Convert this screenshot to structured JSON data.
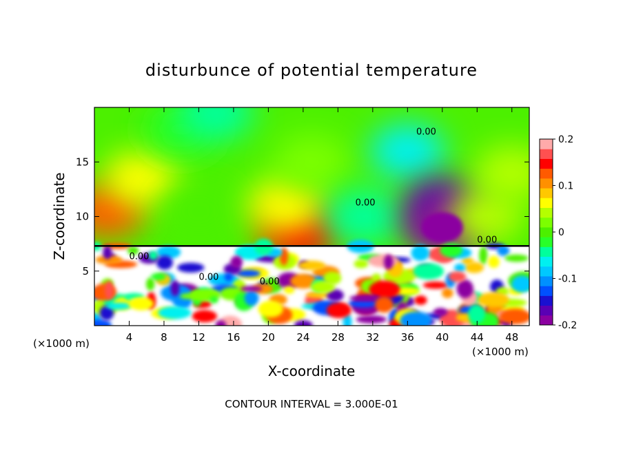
{
  "chart_data": {
    "type": "heatmap",
    "title": "disturbunce of potential temperature",
    "xlabel": "X-coordinate",
    "ylabel": "Z-coordinate",
    "x_unit_label": "(×1000 m)",
    "x_unit_label_right": "(×1000 m)",
    "footnote": "CONTOUR INTERVAL = 3.000E-01",
    "xlim": [
      0,
      50
    ],
    "ylim": [
      0,
      20
    ],
    "x_ticks": [
      4,
      8,
      12,
      16,
      20,
      24,
      28,
      32,
      36,
      40,
      44,
      48
    ],
    "y_ticks": [
      5,
      10,
      15
    ],
    "colorbar": {
      "min": -0.2,
      "max": 0.2,
      "tick_labels": [
        "0.2",
        "0.1",
        "0",
        "-0.1",
        "-0.2"
      ],
      "tick_values": [
        0.2,
        0.1,
        0,
        -0.1,
        -0.2
      ],
      "colors": [
        "#8b00a0",
        "#5a00b4",
        "#1a10d0",
        "#0050ff",
        "#0090ff",
        "#00c8ff",
        "#00f0f0",
        "#00ff9c",
        "#28ff28",
        "#4cf000",
        "#7cff00",
        "#b4ff00",
        "#ffff00",
        "#ffc800",
        "#ff9000",
        "#ff5a00",
        "#ff0000",
        "#ff5050",
        "#ffaaaa"
      ]
    },
    "contour_labels": [
      "0.00",
      "0.00",
      "0.00",
      "0.00",
      "0.00",
      "0.00"
    ],
    "upper_layer": {
      "z_range": [
        7.3,
        20
      ],
      "features": [
        {
          "x": 1.5,
          "z": 10.5,
          "value": 0.12
        },
        {
          "x": 5.5,
          "z": 13.5,
          "value": 0.06
        },
        {
          "x": 12,
          "z": 10.5,
          "value": 0.0
        },
        {
          "x": 10,
          "z": 18,
          "value": -0.02
        },
        {
          "x": 14,
          "z": 19.5,
          "value": -0.05
        },
        {
          "x": 23.5,
          "z": 8.5,
          "value": 0.15
        },
        {
          "x": 22,
          "z": 11,
          "value": 0.07
        },
        {
          "x": 25,
          "z": 15,
          "value": 0.03
        },
        {
          "x": 31,
          "z": 10,
          "value": -0.04
        },
        {
          "x": 36,
          "z": 16,
          "value": -0.06
        },
        {
          "x": 40,
          "z": 11,
          "value": -0.16
        },
        {
          "x": 40,
          "z": 9,
          "value": -0.2
        },
        {
          "x": 45,
          "z": 10,
          "value": 0.04
        },
        {
          "x": 48,
          "z": 14,
          "value": 0.05
        }
      ]
    },
    "lower_layer": {
      "z_range": [
        0,
        7.3
      ],
      "value_range": [
        -0.2,
        0.2
      ],
      "description_values": [
        -0.2,
        -0.1,
        0,
        0.1,
        0.2
      ]
    }
  }
}
